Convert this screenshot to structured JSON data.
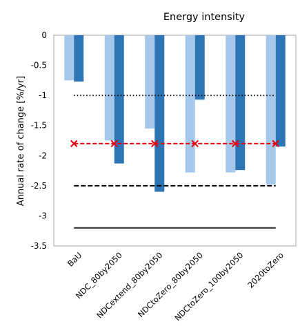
{
  "chart_data": {
    "type": "bar",
    "title": "Energy intensity",
    "ylabel": "Annual rate of change [%/yr]",
    "xlabel": "",
    "ylim": [
      -3.5,
      0
    ],
    "yticks": [
      "0",
      "-0.5",
      "-1",
      "-1.5",
      "-2",
      "-2.5",
      "-3",
      "-3.5"
    ],
    "ytick_values": [
      0,
      -0.5,
      -1,
      -1.5,
      -2,
      -2.5,
      -3,
      -3.5
    ],
    "grid": false,
    "categories": [
      "BaU",
      "NDC_80by2050",
      "NDCextend_80by2050",
      "NDCtoZero_80by2050",
      "NDCtoZero_100by2050",
      "2020toZero"
    ],
    "series": [
      {
        "values": [
          -0.75,
          -1.75,
          -1.55,
          -2.28,
          -2.28,
          -2.48
        ],
        "color": "#a6c8ea"
      },
      {
        "values": [
          -0.77,
          -2.13,
          -2.6,
          -1.07,
          -2.24,
          -1.85
        ],
        "color": "#2e75b6"
      }
    ],
    "reference_lines": [
      {
        "value": -1.0,
        "style": "dotted",
        "color": "#000000"
      },
      {
        "value": -1.8,
        "style": "dashed-with-x-markers",
        "color": "#e8000b"
      },
      {
        "value": -2.5,
        "style": "dashed",
        "color": "#000000"
      },
      {
        "value": -3.2,
        "style": "solid",
        "color": "#404040"
      }
    ]
  }
}
